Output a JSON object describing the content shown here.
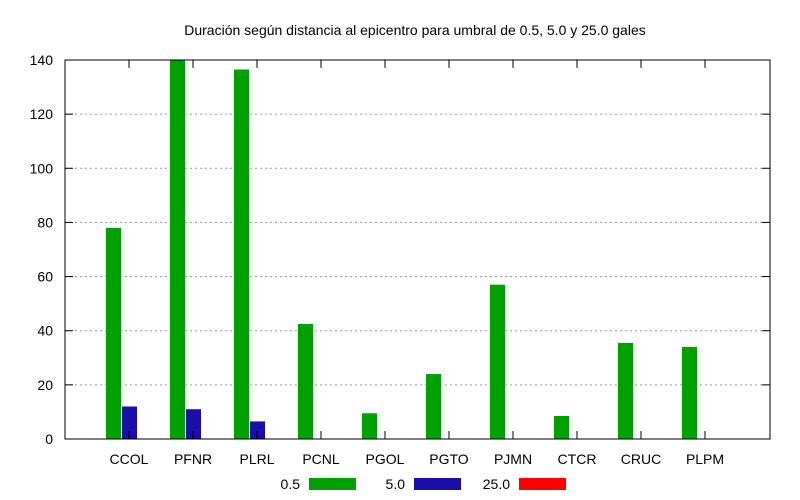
{
  "chart_data": {
    "type": "bar",
    "title": "Duración según distancia al epicentro para umbral de 0.5, 5.0 y 25.0 gales",
    "xlabel": "",
    "ylabel": "",
    "categories": [
      "CCOL",
      "PFNR",
      "PLRL",
      "PCNL",
      "PGOL",
      "PGTO",
      "PJMN",
      "CTCR",
      "CRUC",
      "PLPM"
    ],
    "ylim": [
      0,
      140
    ],
    "yticks": [
      0,
      20,
      40,
      60,
      80,
      100,
      120,
      140
    ],
    "grid": "horizontal dotted",
    "legend_position": "bottom",
    "series": [
      {
        "name": "0.5",
        "color": "#00a000",
        "values": [
          78,
          140,
          136.5,
          42.5,
          9.5,
          24,
          57,
          8.5,
          35.5,
          34
        ]
      },
      {
        "name": "5.0",
        "color": "#1a0fa8",
        "values": [
          12,
          11,
          6.5,
          0,
          0,
          0,
          0,
          0,
          0,
          0
        ]
      },
      {
        "name": "25.0",
        "color": "#ff0000",
        "values": [
          0,
          0,
          0,
          0,
          0,
          0,
          0,
          0,
          0,
          0
        ]
      }
    ]
  }
}
